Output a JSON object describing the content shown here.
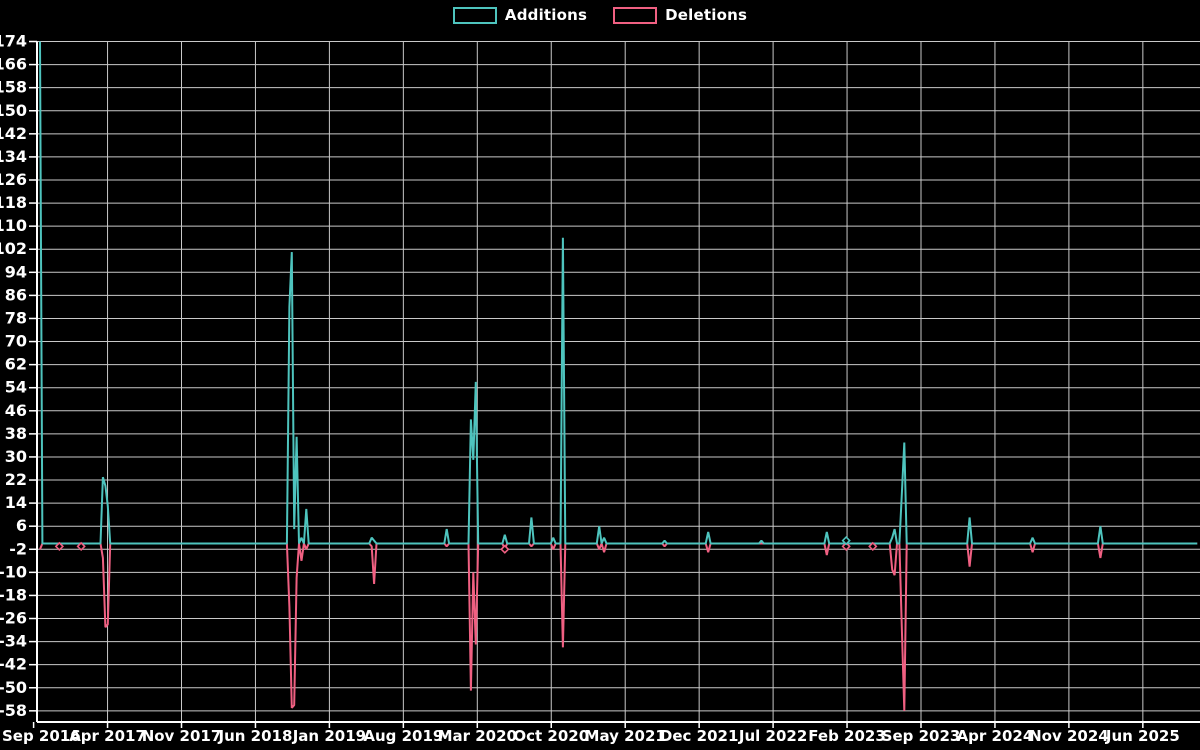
{
  "legend": {
    "additions_label": "Additions",
    "deletions_label": "Deletions"
  },
  "colors": {
    "background": "#000000",
    "additions": "#4EC4BE",
    "deletions": "#F06082",
    "grid": "#c9c9c9",
    "axis": "#ffffff",
    "text": "#ffffff"
  },
  "chart_data": {
    "type": "line",
    "title": "",
    "xlabel": "",
    "ylabel": "",
    "grid": true,
    "legend_position": "top-center",
    "ylim": [
      -58,
      174
    ],
    "y_tick_step": 8,
    "y_ticks": [
      174,
      166,
      158,
      150,
      142,
      134,
      126,
      118,
      110,
      102,
      94,
      86,
      78,
      70,
      62,
      54,
      46,
      38,
      30,
      22,
      14,
      6,
      -2,
      -10,
      -18,
      -26,
      -34,
      -42,
      -50,
      -58
    ],
    "x_tick_labels": [
      "Sep 2016",
      "Apr 2017",
      "Nov 2017",
      "Jun 2018",
      "Jan 2019",
      "Aug 2019",
      "Mar 2020",
      "Oct 2020",
      "May 2021",
      "Dec 2021",
      "Jul 2022",
      "Feb 2023",
      "Sep 2023",
      "Apr 2024",
      "Nov 2024",
      "Jun 2025"
    ],
    "weeks_total": 479,
    "series": [
      {
        "name": "Additions",
        "color_key": "additions"
      },
      {
        "name": "Deletions",
        "color_key": "deletions"
      }
    ],
    "points": [
      {
        "week": 0,
        "date": "Sep 2016",
        "additions": 174,
        "deletions": -2
      },
      {
        "week": 8,
        "date": "Nov 2016",
        "additions": 0,
        "deletions": -1
      },
      {
        "week": 17,
        "date": "Jan 2017",
        "additions": 0,
        "deletions": -1
      },
      {
        "week": 26,
        "date": "Mar 2017",
        "additions": 23,
        "deletions": -5
      },
      {
        "week": 27,
        "date": "Apr 2017",
        "additions": 20,
        "deletions": -29
      },
      {
        "week": 28,
        "date": "Apr 2017",
        "additions": 13,
        "deletions": -28
      },
      {
        "week": 103,
        "date": "Sep 2018",
        "additions": 82,
        "deletions": -22
      },
      {
        "week": 104,
        "date": "Sep 2018",
        "additions": 101,
        "deletions": -57
      },
      {
        "week": 105,
        "date": "Oct 2018",
        "additions": 5,
        "deletions": -56
      },
      {
        "week": 106,
        "date": "Oct 2018",
        "additions": 37,
        "deletions": -12
      },
      {
        "week": 108,
        "date": "Oct 2018",
        "additions": 2,
        "deletions": -6
      },
      {
        "week": 110,
        "date": "Nov 2018",
        "additions": 12,
        "deletions": -2
      },
      {
        "week": 137,
        "date": "May 2019",
        "additions": 2,
        "deletions": -1
      },
      {
        "week": 138,
        "date": "May 2019",
        "additions": 1,
        "deletions": -14
      },
      {
        "week": 168,
        "date": "Dec 2019",
        "additions": 5,
        "deletions": -1
      },
      {
        "week": 178,
        "date": "Feb 2020",
        "additions": 43,
        "deletions": -51
      },
      {
        "week": 179,
        "date": "Feb 2020",
        "additions": 29,
        "deletions": -10
      },
      {
        "week": 180,
        "date": "Mar 2020",
        "additions": 56,
        "deletions": -35
      },
      {
        "week": 192,
        "date": "May 2020",
        "additions": 3,
        "deletions": -2
      },
      {
        "week": 203,
        "date": "Aug 2020",
        "additions": 9,
        "deletions": -1
      },
      {
        "week": 212,
        "date": "Oct 2020",
        "additions": 2,
        "deletions": -2
      },
      {
        "week": 216,
        "date": "Nov 2020",
        "additions": 106,
        "deletions": -36
      },
      {
        "week": 231,
        "date": "Feb 2021",
        "additions": 6,
        "deletions": -2
      },
      {
        "week": 233,
        "date": "Mar 2021",
        "additions": 2,
        "deletions": -3
      },
      {
        "week": 258,
        "date": "Aug 2021",
        "additions": 1,
        "deletions": -1
      },
      {
        "week": 276,
        "date": "Dec 2021",
        "additions": 4,
        "deletions": -3
      },
      {
        "week": 298,
        "date": "May 2022",
        "additions": 1,
        "deletions": 0
      },
      {
        "week": 325,
        "date": "Dec 2022",
        "additions": 4,
        "deletions": -4
      },
      {
        "week": 333,
        "date": "Feb 2023",
        "additions": 1,
        "deletions": -1
      },
      {
        "week": 344,
        "date": "Apr 2023",
        "additions": 0,
        "deletions": -1
      },
      {
        "week": 352,
        "date": "Jun 2023",
        "additions": 2,
        "deletions": -9
      },
      {
        "week": 353,
        "date": "Jun 2023",
        "additions": 5,
        "deletions": -11
      },
      {
        "week": 356,
        "date": "Jul 2023",
        "additions": 17,
        "deletions": -29
      },
      {
        "week": 357,
        "date": "Jul 2023",
        "additions": 35,
        "deletions": -58
      },
      {
        "week": 384,
        "date": "Jan 2024",
        "additions": 9,
        "deletions": -8
      },
      {
        "week": 410,
        "date": "Jul 2024",
        "additions": 2,
        "deletions": -3
      },
      {
        "week": 438,
        "date": "Feb 2025",
        "additions": 6,
        "deletions": -5
      }
    ],
    "markers": {
      "deletions_marker_weeks": [
        8,
        17,
        192,
        333,
        344
      ],
      "additions_marker_weeks": [
        333
      ]
    }
  }
}
